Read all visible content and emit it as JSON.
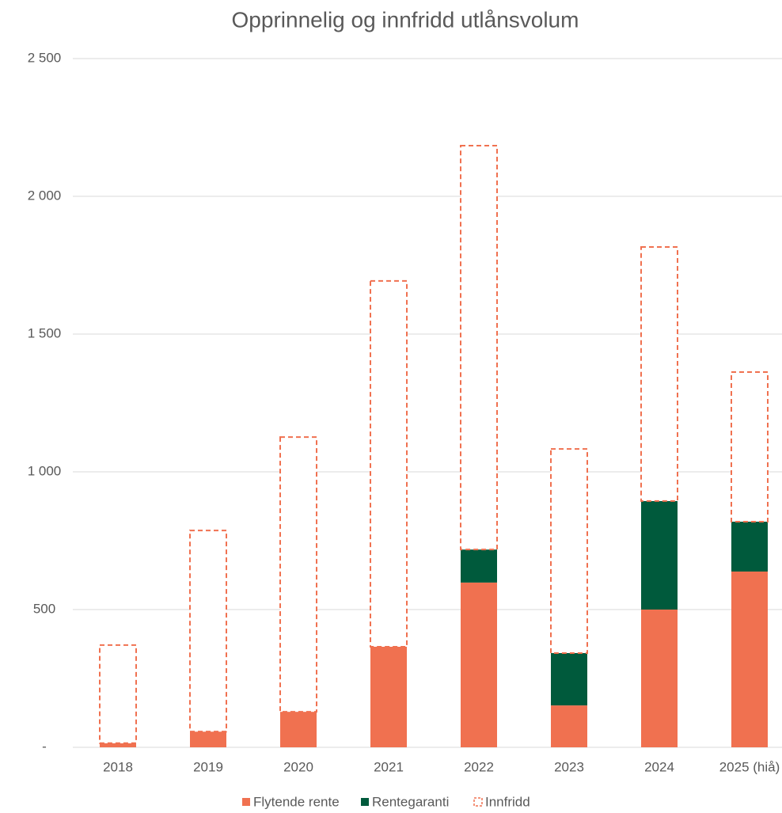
{
  "chart_data": {
    "type": "stacked_bar",
    "title": "Opprinnelig og innfridd utlånsvolum",
    "categories": [
      "2018",
      "2019",
      "2020",
      "2021",
      "2022",
      "2023",
      "2024",
      "2025 (hiå)"
    ],
    "series": [
      {
        "name": "Flytende rente",
        "color": "#f07150",
        "values": [
          15,
          57,
          129,
          365,
          598,
          152,
          500,
          638
        ]
      },
      {
        "name": "Rentegaranti",
        "color": "#005a3c",
        "values": [
          0,
          0,
          0,
          0,
          120,
          190,
          394,
          181
        ]
      },
      {
        "name": "Innfridd",
        "color": "#f07150",
        "values": [
          356,
          730,
          997,
          1328,
          1466,
          741,
          922,
          543
        ]
      }
    ],
    "ylim": [
      0,
      2500
    ],
    "yticks": [
      {
        "value": 0,
        "label": "-"
      },
      500,
      {
        "value": 1000,
        "label": "1 000"
      },
      {
        "value": 1500,
        "label": "1 500"
      },
      {
        "value": 2000,
        "label": "2 000"
      },
      {
        "value": 2500,
        "label": "2 500"
      }
    ],
    "grid": true,
    "legend": "bottom"
  }
}
